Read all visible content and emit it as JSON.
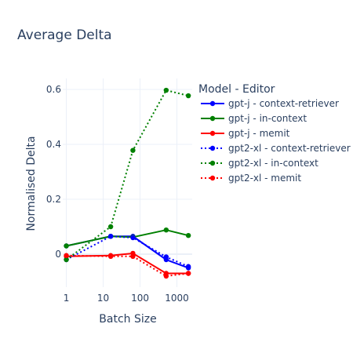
{
  "chart_data": {
    "type": "line",
    "title": "Average Delta",
    "xlabel": "Batch Size",
    "ylabel": "Normalised Delta",
    "x_scale": "log",
    "xlim": [
      0.8,
      2600
    ],
    "ylim": [
      -0.12,
      0.64
    ],
    "x_ticks": [
      1,
      10,
      100,
      1000
    ],
    "x_tick_labels": [
      "1",
      "10",
      "100",
      "1000"
    ],
    "y_ticks": [
      0,
      0.2,
      0.4,
      0.6
    ],
    "y_tick_labels": [
      "0",
      "0.2",
      "0.4",
      "0.6"
    ],
    "grid": true,
    "legend_title": "Model - Editor",
    "legend_position": "right",
    "x": [
      1,
      16,
      64,
      512,
      2048
    ],
    "series": [
      {
        "name": "gpt-j - context-retriever",
        "color": "#0000ff",
        "dash": "solid",
        "values": [
          0.03,
          0.065,
          0.065,
          -0.02,
          -0.05
        ]
      },
      {
        "name": "gpt-j - in-context",
        "color": "#008000",
        "dash": "solid",
        "values": [
          0.03,
          0.065,
          0.062,
          0.088,
          0.068
        ]
      },
      {
        "name": "gpt-j - memit",
        "color": "#ff0000",
        "dash": "solid",
        "values": [
          -0.008,
          -0.005,
          0.003,
          -0.07,
          -0.07
        ]
      },
      {
        "name": "gpt2-xl - context-retriever",
        "color": "#0000ff",
        "dash": "dot",
        "values": [
          -0.02,
          0.065,
          0.06,
          -0.01,
          -0.045
        ]
      },
      {
        "name": "gpt2-xl - in-context",
        "color": "#008000",
        "dash": "dot",
        "values": [
          -0.02,
          0.1,
          0.378,
          0.597,
          0.577
        ]
      },
      {
        "name": "gpt2-xl - memit",
        "color": "#ff0000",
        "dash": "dot",
        "values": [
          -0.005,
          -0.008,
          -0.008,
          -0.08,
          -0.07
        ]
      }
    ]
  }
}
